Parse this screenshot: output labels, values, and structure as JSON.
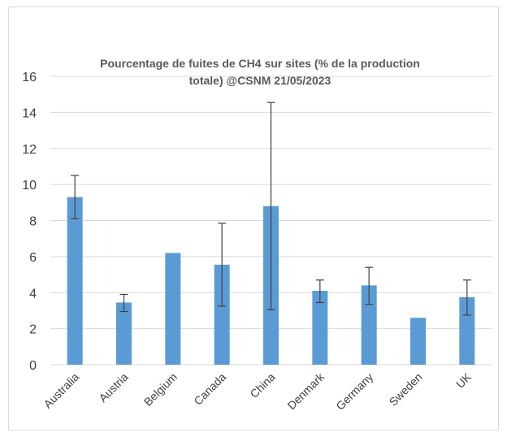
{
  "chart_data": {
    "type": "bar",
    "title_lines": [
      "Pourcentage de fuites de CH4 sur sites (% de la production",
      "totale) @CSNM 21/05/2023"
    ],
    "xlabel": "",
    "ylabel": "",
    "categories": [
      "Australia",
      "Austria",
      "Belgium",
      "Canada",
      "China",
      "Denmark",
      "Germany",
      "Sweden",
      "UK"
    ],
    "values": [
      9.3,
      3.45,
      6.2,
      5.55,
      8.8,
      4.1,
      4.4,
      2.6,
      3.75
    ],
    "error_low": [
      8.1,
      2.95,
      null,
      3.25,
      3.05,
      3.45,
      3.35,
      null,
      2.75
    ],
    "error_high": [
      10.5,
      3.9,
      null,
      7.85,
      14.55,
      4.7,
      5.4,
      null,
      4.7
    ],
    "ylim": [
      0,
      16
    ],
    "yticks": [
      0,
      2,
      4,
      6,
      8,
      10,
      12,
      14,
      16
    ],
    "grid": true,
    "legend": "none",
    "bar_color": "#5b9bd5",
    "grid_color": "#d9d9d9",
    "error_color": "#404040"
  }
}
